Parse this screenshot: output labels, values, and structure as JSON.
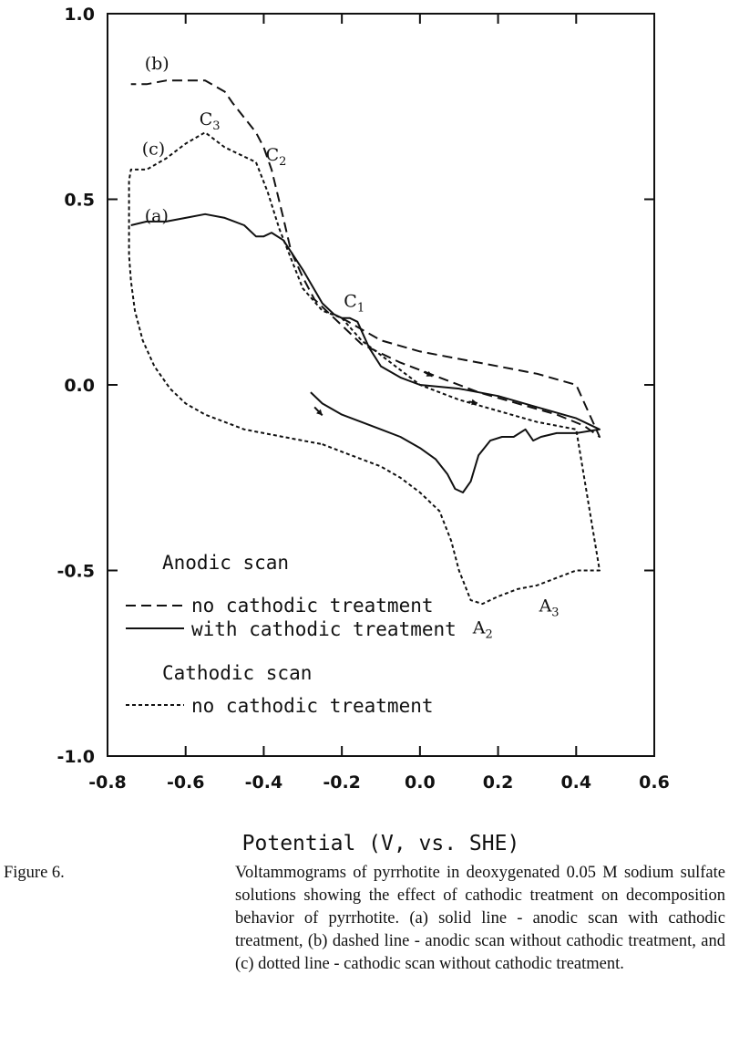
{
  "chart_data": {
    "type": "line",
    "xlabel": "Potential (V, vs. SHE)",
    "ylabel": "",
    "xlim": [
      -0.8,
      0.6
    ],
    "ylim": [
      -1.0,
      1.0
    ],
    "x_ticks": [
      "-0.8",
      "-0.6",
      "-0.4",
      "-0.2",
      "0.0",
      "0.2",
      "0.4",
      "0.6"
    ],
    "y_ticks": [
      "1.0",
      "0.5",
      "0.0",
      "-0.5",
      "-1.0"
    ],
    "grid": false,
    "legend": {
      "placement": "bottom-left",
      "groups": [
        {
          "title": "Anodic scan",
          "entries": [
            {
              "style": "dashed",
              "label": "no cathodic treatment"
            },
            {
              "style": "solid",
              "label": "with cathodic treatment"
            }
          ]
        },
        {
          "title": "Cathodic scan",
          "entries": [
            {
              "style": "dotted",
              "label": "no cathodic treatment"
            }
          ]
        }
      ]
    },
    "series": [
      {
        "style": "solid",
        "x": [
          -0.28,
          -0.25,
          -0.2,
          -0.15,
          -0.1,
          -0.05,
          0.0,
          0.04,
          0.07,
          0.09,
          0.11,
          0.13,
          0.15,
          0.18,
          0.21,
          0.24,
          0.27,
          0.29,
          0.31,
          0.35,
          0.4,
          0.46,
          0.4,
          0.3,
          0.2,
          0.1,
          0.0,
          -0.05,
          -0.1,
          -0.13,
          -0.16,
          -0.18,
          -0.2,
          -0.22,
          -0.25,
          -0.3,
          -0.35,
          -0.38,
          -0.4,
          -0.42,
          -0.45,
          -0.5,
          -0.55,
          -0.6,
          -0.65,
          -0.7,
          -0.74
        ],
        "y": [
          -0.02,
          -0.05,
          -0.08,
          -0.1,
          -0.12,
          -0.14,
          -0.17,
          -0.2,
          -0.24,
          -0.28,
          -0.29,
          -0.26,
          -0.19,
          -0.15,
          -0.14,
          -0.14,
          -0.12,
          -0.15,
          -0.14,
          -0.13,
          -0.13,
          -0.12,
          -0.09,
          -0.06,
          -0.03,
          -0.01,
          0.0,
          0.02,
          0.05,
          0.1,
          0.17,
          0.18,
          0.18,
          0.19,
          0.22,
          0.31,
          0.39,
          0.41,
          0.4,
          0.4,
          0.43,
          0.45,
          0.46,
          0.45,
          0.44,
          0.44,
          0.43
        ]
      },
      {
        "style": "dashed",
        "x": [
          -0.2,
          -0.1,
          0.0,
          0.1,
          0.2,
          0.3,
          0.4,
          0.46,
          0.42,
          0.35,
          0.25,
          0.15,
          0.05,
          -0.05,
          -0.15,
          -0.22,
          -0.27,
          -0.3,
          -0.33,
          -0.35,
          -0.38,
          -0.4,
          -0.42,
          -0.45,
          -0.48,
          -0.5,
          -0.55,
          -0.6,
          -0.65,
          -0.7,
          -0.74
        ],
        "y": [
          0.18,
          0.12,
          0.09,
          0.07,
          0.05,
          0.03,
          0.0,
          -0.14,
          -0.11,
          -0.08,
          -0.05,
          -0.02,
          0.02,
          0.06,
          0.11,
          0.18,
          0.23,
          0.29,
          0.36,
          0.45,
          0.58,
          0.64,
          0.68,
          0.72,
          0.76,
          0.79,
          0.82,
          0.82,
          0.82,
          0.81,
          0.81
        ]
      },
      {
        "style": "dotted",
        "x": [
          -0.25,
          -0.2,
          -0.15,
          -0.1,
          -0.05,
          0.0,
          0.05,
          0.08,
          0.1,
          0.13,
          0.16,
          0.2,
          0.25,
          0.3,
          0.35,
          0.4,
          0.46,
          0.4,
          0.3,
          0.2,
          0.1,
          0.0,
          -0.05,
          -0.1,
          -0.15,
          -0.2,
          -0.25,
          -0.3,
          -0.33,
          -0.36,
          -0.39,
          -0.42,
          -0.46,
          -0.5,
          -0.55,
          -0.6,
          -0.65,
          -0.7,
          -0.74,
          -0.745,
          -0.745,
          -0.745,
          -0.74,
          -0.73,
          -0.71,
          -0.68,
          -0.64,
          -0.6,
          -0.55,
          -0.5,
          -0.45,
          -0.4,
          -0.35,
          -0.3,
          -0.25
        ],
        "y": [
          -0.16,
          -0.18,
          -0.2,
          -0.22,
          -0.25,
          -0.29,
          -0.34,
          -0.42,
          -0.5,
          -0.58,
          -0.59,
          -0.57,
          -0.55,
          -0.54,
          -0.52,
          -0.5,
          -0.5,
          -0.12,
          -0.1,
          -0.07,
          -0.04,
          0.0,
          0.04,
          0.08,
          0.12,
          0.18,
          0.2,
          0.26,
          0.34,
          0.42,
          0.52,
          0.6,
          0.62,
          0.64,
          0.68,
          0.65,
          0.61,
          0.58,
          0.58,
          0.55,
          0.45,
          0.35,
          0.28,
          0.2,
          0.12,
          0.05,
          -0.01,
          -0.05,
          -0.08,
          -0.1,
          -0.12,
          -0.13,
          -0.14,
          -0.15,
          -0.16
        ]
      }
    ],
    "annotations": [
      {
        "text": "(a)",
        "x": -0.705,
        "y": 0.44
      },
      {
        "text": "(b)",
        "x": -0.705,
        "y": 0.85
      },
      {
        "text": "(c)",
        "x": -0.712,
        "y": 0.62
      },
      {
        "main": "C",
        "sub": "1",
        "x": -0.195,
        "y": 0.21
      },
      {
        "main": "C",
        "sub": "2",
        "x": -0.395,
        "y": 0.605
      },
      {
        "main": "C",
        "sub": "3",
        "x": -0.565,
        "y": 0.7
      },
      {
        "main": "A",
        "sub": "2",
        "x": 0.135,
        "y": -0.67
      },
      {
        "main": "A",
        "sub": "3",
        "x": 0.305,
        "y": -0.61
      }
    ],
    "arrows": [
      {
        "x": -0.27,
        "y": -0.06,
        "dx": 0.02,
        "dy": -0.022
      },
      {
        "x": 0.01,
        "y": 0.035,
        "dx": 0.022,
        "dy": -0.012
      },
      {
        "x": 0.125,
        "y": -0.045,
        "dx": 0.022,
        "dy": -0.004
      }
    ]
  },
  "caption": {
    "label": "Figure 6.",
    "text": "Voltammograms of pyrrhotite in deoxygenated 0.05 M sodium sulfate solutions showing the effect of cathodic treatment on decomposition behavior of pyrrhotite. (a) solid line - anodic scan with cathodic treatment, (b) dashed line - anodic scan without cathodic treatment, and (c) dotted line - cathodic scan without cathodic treatment."
  }
}
